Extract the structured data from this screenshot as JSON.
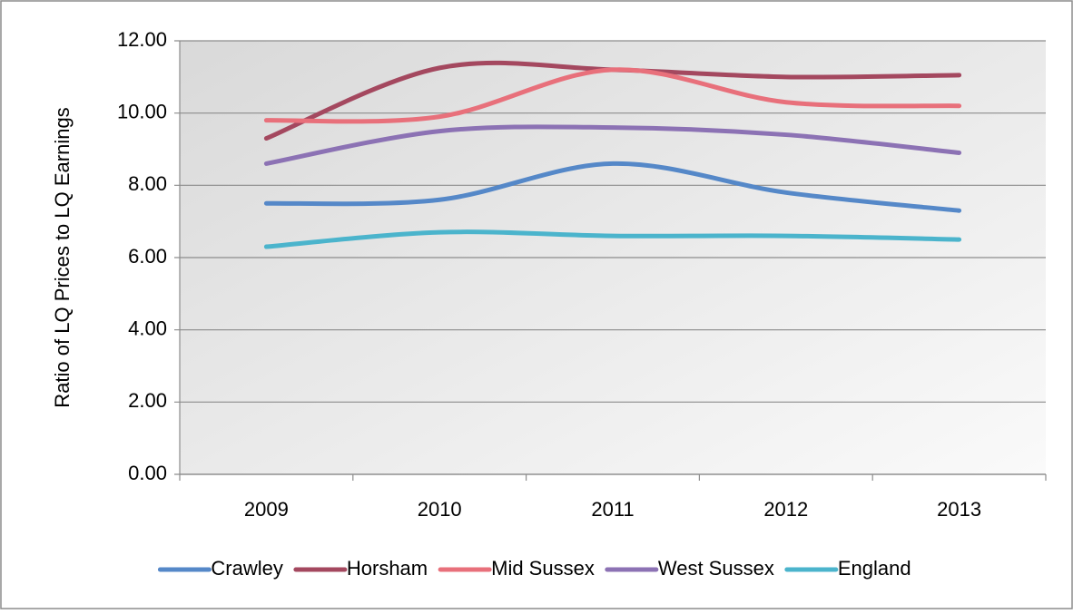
{
  "chart_data": {
    "type": "line",
    "y_label": "Ratio of LQ Prices to LQ Earnings",
    "categories": [
      "2009",
      "2010",
      "2011",
      "2012",
      "2013"
    ],
    "series": [
      {
        "name": "Crawley",
        "color": "#5588c8",
        "values": [
          7.5,
          7.6,
          8.6,
          7.8,
          7.3
        ]
      },
      {
        "name": "Horsham",
        "color": "#a4485f",
        "values": [
          9.3,
          11.25,
          11.2,
          11.0,
          11.05
        ]
      },
      {
        "name": "Mid Sussex",
        "color": "#e8707b",
        "values": [
          9.8,
          9.9,
          11.2,
          10.3,
          10.2
        ]
      },
      {
        "name": "West Sussex",
        "color": "#8c72b4",
        "values": [
          8.6,
          9.5,
          9.6,
          9.4,
          8.9
        ]
      },
      {
        "name": "England",
        "color": "#4bb4cc",
        "values": [
          6.3,
          6.7,
          6.6,
          6.6,
          6.5
        ]
      }
    ],
    "ylim": [
      0,
      12
    ],
    "yticks": [
      {
        "value": 0,
        "label": "0.00"
      },
      {
        "value": 2,
        "label": "2.00"
      },
      {
        "value": 4,
        "label": "4.00"
      },
      {
        "value": 6,
        "label": "6.00"
      },
      {
        "value": 8,
        "label": "8.00"
      },
      {
        "value": 10,
        "label": "10.00"
      },
      {
        "value": 12,
        "label": "12.00"
      }
    ],
    "grid": true,
    "legend": "bottom"
  }
}
